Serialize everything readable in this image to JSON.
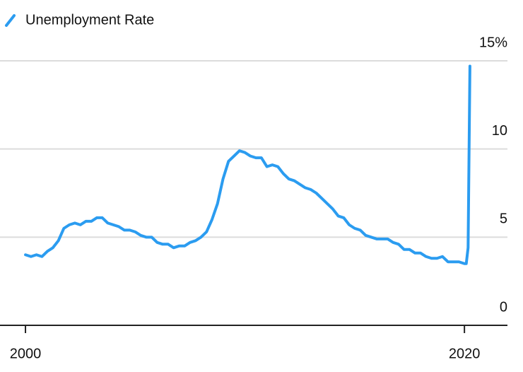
{
  "chart_data": {
    "type": "line",
    "series": [
      {
        "name": "Unemployment Rate",
        "color": "#2b9cf0",
        "values": [
          4.0,
          3.9,
          4.0,
          3.9,
          4.2,
          4.4,
          4.8,
          5.5,
          5.7,
          5.8,
          5.7,
          5.9,
          5.9,
          6.1,
          6.1,
          5.8,
          5.7,
          5.6,
          5.4,
          5.4,
          5.3,
          5.1,
          5.0,
          5.0,
          4.7,
          4.6,
          4.6,
          4.4,
          4.5,
          4.5,
          4.7,
          4.8,
          5.0,
          5.3,
          6.0,
          6.9,
          8.3,
          9.3,
          9.6,
          9.9,
          9.8,
          9.6,
          9.5,
          9.5,
          9.0,
          9.1,
          9.0,
          8.6,
          8.3,
          8.2,
          8.0,
          7.8,
          7.7,
          7.5,
          7.2,
          6.9,
          6.6,
          6.2,
          6.1,
          5.7,
          5.5,
          5.4,
          5.1,
          5.0,
          4.9,
          4.9,
          4.9,
          4.7,
          4.6,
          4.3,
          4.3,
          4.1,
          4.1,
          3.9,
          3.8,
          3.8,
          3.9,
          3.6,
          3.6,
          3.6,
          3.5,
          3.5,
          4.4,
          14.7
        ]
      }
    ],
    "x": [
      2000,
      2000.25,
      2000.5,
      2000.75,
      2001,
      2001.25,
      2001.5,
      2001.75,
      2002,
      2002.25,
      2002.5,
      2002.75,
      2003,
      2003.25,
      2003.5,
      2003.75,
      2004,
      2004.25,
      2004.5,
      2004.75,
      2005,
      2005.25,
      2005.5,
      2005.75,
      2006,
      2006.25,
      2006.5,
      2006.75,
      2007,
      2007.25,
      2007.5,
      2007.75,
      2008,
      2008.25,
      2008.5,
      2008.75,
      2009,
      2009.25,
      2009.5,
      2009.75,
      2010,
      2010.25,
      2010.5,
      2010.75,
      2011,
      2011.25,
      2011.5,
      2011.75,
      2012,
      2012.25,
      2012.5,
      2012.75,
      2013,
      2013.25,
      2013.5,
      2013.75,
      2014,
      2014.25,
      2014.5,
      2014.75,
      2015,
      2015.25,
      2015.5,
      2015.75,
      2016,
      2016.25,
      2016.5,
      2016.75,
      2017,
      2017.25,
      2017.5,
      2017.75,
      2018,
      2018.25,
      2018.5,
      2018.75,
      2019,
      2019.25,
      2019.5,
      2019.75,
      2020,
      2020.083,
      2020.167,
      2020.25
    ],
    "xlim": [
      1998.84,
      2021.96
    ],
    "xticks": [
      2000,
      2020
    ],
    "ylim": [
      0,
      15
    ],
    "yticks": [
      0,
      5,
      10,
      {
        "value": 15,
        "label": "15%"
      }
    ],
    "grid": true
  }
}
